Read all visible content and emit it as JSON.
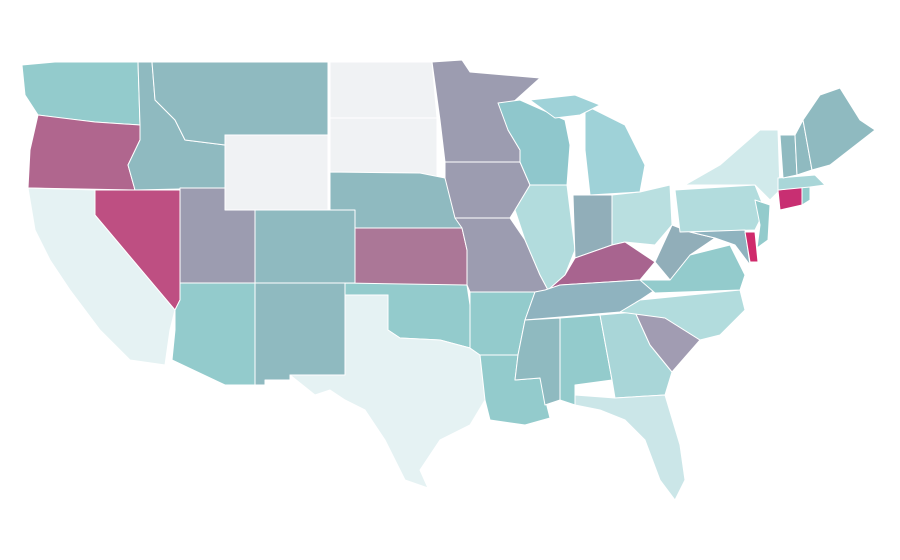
{
  "map": {
    "regions": [
      {
        "color": "#93cbcc"
      },
      {
        "color": "#b0668e"
      },
      {
        "color": "#e5f2f3"
      },
      {
        "color": "#be4f82"
      },
      {
        "color": "#8fbac0"
      },
      {
        "color": "#8fbac0"
      },
      {
        "color": "#f0f2f4"
      },
      {
        "color": "#9c9cb0"
      },
      {
        "color": "#8fbac0"
      },
      {
        "color": "#93cbcc"
      },
      {
        "color": "#8fbac0"
      },
      {
        "color": "#f0f2f4"
      },
      {
        "color": "#f0f2f4"
      },
      {
        "color": "#8fbac0"
      },
      {
        "color": "#ab7797"
      },
      {
        "color": "#93cbcc"
      },
      {
        "color": "#e5f2f3"
      },
      {
        "color": "#9c9cb0"
      },
      {
        "color": "#9c9cb0"
      },
      {
        "color": "#9c9cb0"
      },
      {
        "color": "#93cbcc"
      },
      {
        "color": "#93cbcc"
      },
      {
        "color": "#8fc7cc"
      },
      {
        "color": "#b2dcdd"
      },
      {
        "color": "#91aeb9"
      },
      {
        "color": "#9fd2d8"
      },
      {
        "color": "#9fd2d8"
      },
      {
        "color": "#b9dfe0"
      },
      {
        "color": "#a8648f"
      },
      {
        "color": "#8fb3bf"
      },
      {
        "color": "#8fbac0"
      },
      {
        "color": "#93cbcc"
      },
      {
        "color": "#a9d6d8"
      },
      {
        "color": "#cbe6e8"
      },
      {
        "color": "#a19cb2"
      },
      {
        "color": "#b2dcdd"
      },
      {
        "color": "#93cbcc"
      },
      {
        "color": "#91aeb9"
      },
      {
        "color": "#b2dcdd"
      },
      {
        "color": "#d1eaeb"
      },
      {
        "color": "#8fb3bf"
      },
      {
        "color": "#cf2a6b"
      },
      {
        "color": "#93cbcc"
      },
      {
        "color": "#c82f72"
      },
      {
        "color": "#93cbcc"
      },
      {
        "color": "#a9d6d8"
      },
      {
        "color": "#8fbac0"
      },
      {
        "color": "#8fbac0"
      },
      {
        "color": "#8fbac0"
      }
    ]
  }
}
